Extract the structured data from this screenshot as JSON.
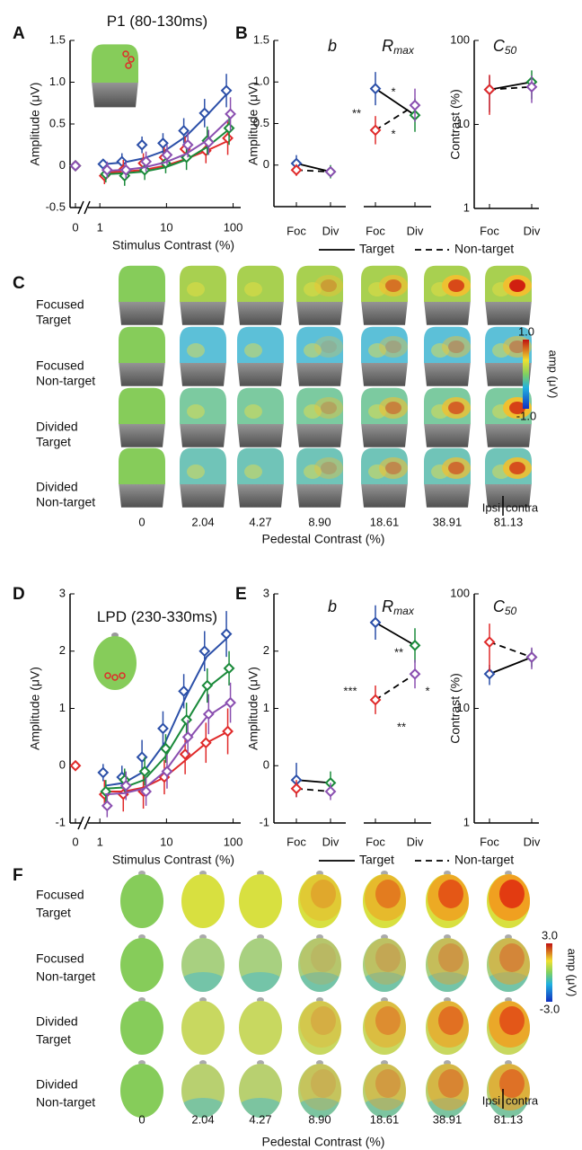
{
  "chart_data": [
    {
      "type": "line",
      "panel": "A",
      "title": "P1 (80-130ms)",
      "xlabel": "Stimulus Contrast (%)",
      "ylabel": "Amplitude (μV)",
      "xscale": "log",
      "axis_break": true,
      "x": [
        0,
        1.2,
        2.3,
        4.6,
        9.5,
        19.5,
        40,
        85
      ],
      "xlim": [
        0.8,
        130
      ],
      "xticks": [
        0,
        1,
        10,
        100
      ],
      "ylim": [
        -0.5,
        1.5
      ],
      "yticks": [
        -0.5,
        0,
        0.5,
        {
          "value": 1,
          "label": "1.0"
        },
        1.5
      ],
      "series": [
        {
          "color": "#2b4fa8",
          "values": [
            0.0,
            0.02,
            0.05,
            0.25,
            0.27,
            0.42,
            0.63,
            0.9
          ],
          "errors": [
            0.05,
            0.05,
            0.1,
            0.1,
            0.12,
            0.15,
            0.17,
            0.2
          ],
          "fit": [
            null,
            0.02,
            0.04,
            0.09,
            0.18,
            0.35,
            0.6,
            0.88
          ]
        },
        {
          "color": "#e02a2a",
          "values": [
            0.0,
            -0.12,
            -0.05,
            0.03,
            0.1,
            0.2,
            0.18,
            0.33
          ],
          "errors": [
            0.05,
            0.1,
            0.12,
            0.12,
            0.12,
            0.15,
            0.15,
            0.2
          ],
          "fit": [
            null,
            -0.08,
            -0.07,
            -0.05,
            0.0,
            0.08,
            0.18,
            0.3
          ]
        },
        {
          "color": "#1a8a3a",
          "values": [
            0.0,
            -0.1,
            -0.12,
            -0.05,
            0.03,
            0.1,
            0.3,
            0.45
          ],
          "errors": [
            0.05,
            0.1,
            0.12,
            0.12,
            0.12,
            0.15,
            0.17,
            0.2
          ],
          "fit": [
            null,
            -0.1,
            -0.09,
            -0.07,
            -0.02,
            0.07,
            0.22,
            0.43
          ]
        },
        {
          "color": "#8a4fb0",
          "values": [
            0.0,
            -0.05,
            -0.05,
            0.05,
            0.13,
            0.25,
            0.28,
            0.62
          ],
          "errors": [
            0.05,
            0.1,
            0.1,
            0.12,
            0.12,
            0.15,
            0.15,
            0.2
          ],
          "fit": [
            null,
            -0.06,
            -0.05,
            -0.02,
            0.04,
            0.14,
            0.3,
            0.55
          ]
        }
      ]
    },
    {
      "type": "point",
      "panel": "B",
      "title": "b",
      "ylabel": "Amplitude (μV)",
      "categories": [
        "Foc",
        "Div"
      ],
      "ylim": [
        -0.5,
        1.5
      ],
      "yticks": [
        0,
        0.5,
        {
          "value": 1,
          "label": "1.0"
        },
        1.5
      ],
      "series": [
        {
          "name": "Target",
          "dash": false,
          "point_colors": [
            "#2b4fa8",
            "#1a8a3a"
          ],
          "values": [
            0.02,
            -0.08
          ],
          "errors": [
            0.1,
            0.08
          ]
        },
        {
          "name": "Non-target",
          "dash": true,
          "point_colors": [
            "#e02a2a",
            "#8a4fb0"
          ],
          "values": [
            -0.06,
            -0.08
          ],
          "errors": [
            0.07,
            0.06
          ]
        }
      ]
    },
    {
      "type": "point",
      "title": "R",
      "title_sub": "max",
      "categories": [
        "Foc",
        "Div"
      ],
      "ylim": [
        -0.5,
        1.5
      ],
      "annotations": [
        "*",
        "**",
        "*"
      ],
      "series": [
        {
          "dash": false,
          "point_colors": [
            "#2b4fa8",
            "#1a8a3a"
          ],
          "values": [
            0.92,
            0.6
          ],
          "errors": [
            0.2,
            0.2
          ]
        },
        {
          "dash": true,
          "point_colors": [
            "#e02a2a",
            "#8a4fb0"
          ],
          "values": [
            0.42,
            0.72
          ],
          "errors": [
            0.17,
            0.2
          ]
        }
      ]
    },
    {
      "type": "point",
      "title": "C",
      "title_sub": "50",
      "ylabel": "Contrast (%)",
      "categories": [
        "Foc",
        "Div"
      ],
      "yscale": "log",
      "ylim": [
        1,
        100
      ],
      "yticks": [
        1,
        10,
        100
      ],
      "series": [
        {
          "dash": false,
          "point_colors": [
            "#2b4fa8",
            "#1a8a3a"
          ],
          "values": [
            26,
            32
          ],
          "errors": [
            12,
            12
          ]
        },
        {
          "dash": true,
          "point_colors": [
            "#e02a2a",
            "#8a4fb0"
          ],
          "values": [
            26,
            28
          ],
          "errors": [
            13,
            10
          ]
        }
      ]
    },
    {
      "type": "line",
      "panel": "D",
      "title": "LPD (230-330ms)",
      "xlabel": "Stimulus Contrast (%)",
      "ylabel": "Amplitude (μV)",
      "xscale": "log",
      "axis_break": true,
      "x": [
        0,
        1.2,
        2.3,
        4.6,
        9.5,
        19.5,
        40,
        85
      ],
      "xlim": [
        0.8,
        130
      ],
      "xticks": [
        0,
        1,
        10,
        100
      ],
      "ylim": [
        -1,
        3
      ],
      "yticks": [
        -1,
        0,
        1,
        2,
        3
      ],
      "series": [
        {
          "color": "#2b4fa8",
          "values": [
            null,
            -0.12,
            -0.2,
            0.15,
            0.65,
            1.3,
            2.0,
            2.3
          ],
          "errors": [
            null,
            0.15,
            0.2,
            0.3,
            0.3,
            0.3,
            0.35,
            0.4
          ],
          "fit": [
            null,
            -0.35,
            -0.3,
            -0.1,
            0.4,
            1.2,
            1.9,
            2.25
          ]
        },
        {
          "color": "#e02a2a",
          "values": [
            0.0,
            -0.5,
            -0.5,
            -0.45,
            -0.2,
            0.2,
            0.4,
            0.6
          ],
          "errors": [
            0.05,
            0.25,
            0.3,
            0.3,
            0.3,
            0.35,
            0.35,
            0.4
          ],
          "fit": [
            null,
            -0.45,
            -0.45,
            -0.38,
            -0.2,
            0.1,
            0.4,
            0.6
          ]
        },
        {
          "color": "#1a8a3a",
          "values": [
            null,
            -0.45,
            -0.25,
            -0.1,
            0.3,
            0.8,
            1.4,
            1.7
          ],
          "errors": [
            null,
            0.2,
            0.2,
            0.25,
            0.25,
            0.3,
            0.3,
            0.3
          ],
          "fit": [
            null,
            -0.4,
            -0.38,
            -0.25,
            0.15,
            0.75,
            1.35,
            1.65
          ]
        },
        {
          "color": "#8a4fb0",
          "values": [
            null,
            -0.7,
            -0.35,
            -0.45,
            -0.1,
            0.5,
            0.9,
            1.1
          ],
          "errors": [
            null,
            0.2,
            0.25,
            0.25,
            0.3,
            0.3,
            0.35,
            0.35
          ],
          "fit": [
            null,
            -0.5,
            -0.48,
            -0.4,
            -0.1,
            0.4,
            0.85,
            1.1
          ]
        }
      ]
    },
    {
      "type": "point",
      "panel": "E",
      "title": "b",
      "ylabel": "Amplitude (μV)",
      "categories": [
        "Foc",
        "Div"
      ],
      "ylim": [
        -1,
        3
      ],
      "yticks": [
        -1,
        0,
        1,
        2,
        3
      ],
      "series": [
        {
          "name": "Target",
          "dash": false,
          "point_colors": [
            "#2b4fa8",
            "#1a8a3a"
          ],
          "values": [
            -0.25,
            -0.3
          ],
          "errors": [
            0.3,
            0.2
          ]
        },
        {
          "name": "Non-target",
          "dash": true,
          "point_colors": [
            "#e02a2a",
            "#8a4fb0"
          ],
          "values": [
            -0.4,
            -0.45
          ],
          "errors": [
            0.15,
            0.15
          ]
        }
      ]
    },
    {
      "type": "point",
      "title": "R",
      "title_sub": "max",
      "categories": [
        "Foc",
        "Div"
      ],
      "ylim": [
        -1,
        3
      ],
      "annotations": [
        "**",
        "***",
        "*",
        "**"
      ],
      "series": [
        {
          "dash": false,
          "point_colors": [
            "#2b4fa8",
            "#1a8a3a"
          ],
          "values": [
            2.5,
            2.1
          ],
          "errors": [
            0.3,
            0.3
          ]
        },
        {
          "dash": true,
          "point_colors": [
            "#e02a2a",
            "#8a4fb0"
          ],
          "values": [
            1.15,
            1.6
          ],
          "errors": [
            0.25,
            0.25
          ]
        }
      ]
    },
    {
      "type": "point",
      "title": "C",
      "title_sub": "50",
      "ylabel": "Contrast (%)",
      "categories": [
        "Foc",
        "Div"
      ],
      "yscale": "log",
      "ylim": [
        1,
        100
      ],
      "yticks": [
        1,
        10,
        100
      ],
      "series": [
        {
          "dash": false,
          "point_colors": [
            "#2b4fa8",
            "#1a8a3a"
          ],
          "values": [
            20,
            28
          ],
          "errors": [
            4,
            5
          ]
        },
        {
          "dash": true,
          "point_colors": [
            "#e02a2a",
            "#8a4fb0"
          ],
          "values": [
            38,
            28
          ],
          "errors": [
            17,
            6
          ]
        }
      ]
    }
  ],
  "topomaps": [
    {
      "panel": "C",
      "view": "side",
      "rows": [
        {
          "line1": "Focused",
          "line2": "Target",
          "color": "#2b4fa8"
        },
        {
          "line1": "Focused",
          "line2": "Non-target",
          "color": "#e02a2a"
        },
        {
          "line1": "Divided",
          "line2": "Target",
          "color": "#1a8a3a"
        },
        {
          "line1": "Divided",
          "line2": "Non-target",
          "color": "#8a4fb0"
        }
      ],
      "columns": [
        "0",
        "2.04",
        "4.27",
        "8.90",
        "18.61",
        "38.91",
        "81.13"
      ],
      "xlabel": "Pedestal Contrast (%)",
      "colorbar": {
        "max_label": "1.0",
        "min_label": "-1.0",
        "label": "amp (μV)"
      },
      "ipsi": "Ipsi",
      "contra": "contra"
    },
    {
      "panel": "F",
      "view": "top",
      "rows": [
        {
          "line1": "Focused",
          "line2": "Target",
          "color": "#2b4fa8"
        },
        {
          "line1": "Focused",
          "line2": "Non-target",
          "color": "#e02a2a"
        },
        {
          "line1": "Divided",
          "line2": "Target",
          "color": "#1a8a3a"
        },
        {
          "line1": "Divided",
          "line2": "Non-target",
          "color": "#8a4fb0"
        }
      ],
      "columns": [
        "0",
        "2.04",
        "4.27",
        "8.90",
        "18.61",
        "38.91",
        "81.13"
      ],
      "xlabel": "Pedestal Contrast (%)",
      "colorbar": {
        "max_label": "3.0",
        "min_label": "-3.0",
        "label": "amp (μV)"
      },
      "ipsi": "Ipsi",
      "contra": "contra"
    }
  ]
}
